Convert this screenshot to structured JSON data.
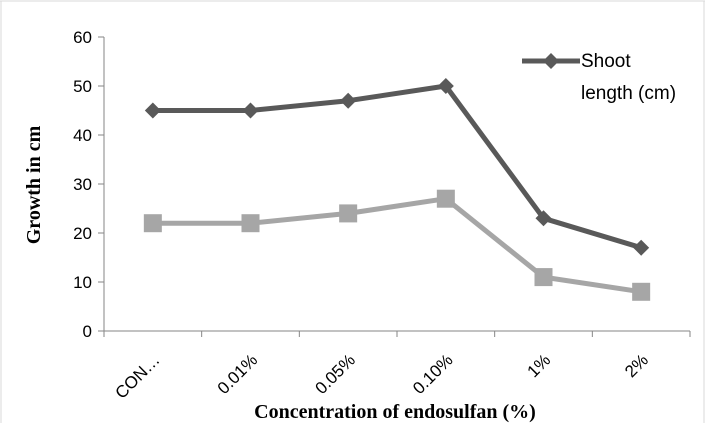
{
  "chart_data": {
    "type": "line",
    "categories": [
      "CON…",
      "0.01%",
      "0.05%",
      "0.10%",
      "1%",
      "2%"
    ],
    "series": [
      {
        "name": "Shoot length (cm)",
        "values": [
          45,
          45,
          47,
          50,
          23,
          17
        ],
        "color": "#595959",
        "marker": "diamond"
      },
      {
        "name": "",
        "values": [
          22,
          22,
          24,
          27,
          11,
          8
        ],
        "color": "#a6a6a6",
        "marker": "square"
      }
    ],
    "title": "",
    "xlabel": "Concentration of endosulfan (%)",
    "ylabel": "Growth in cm",
    "ylim": [
      0,
      60
    ],
    "yticks": [
      0,
      10,
      20,
      30,
      40,
      50,
      60
    ],
    "grid": false,
    "legend": {
      "position": "top-right",
      "lines": [
        "Shoot",
        "length (cm)"
      ]
    }
  }
}
